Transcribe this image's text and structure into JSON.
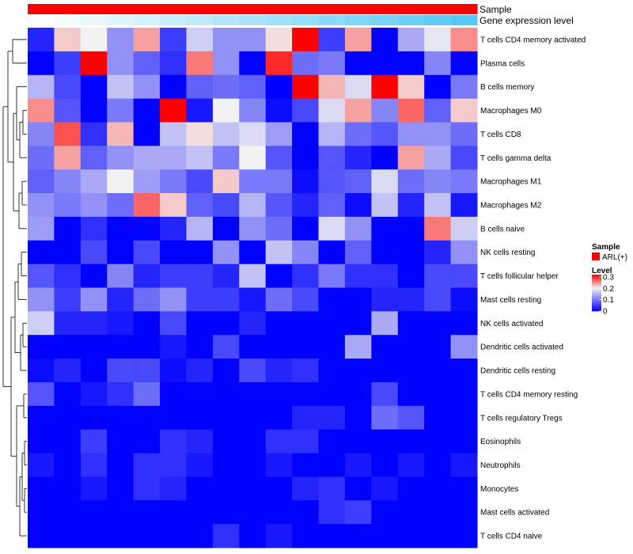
{
  "chart_data": {
    "type": "heatmap",
    "title": "",
    "annotations": [
      {
        "name": "Sample",
        "kind": "solid",
        "color": "#ff0000"
      },
      {
        "name": "Gene expression level",
        "kind": "gradient",
        "from": "#ffffff",
        "to": "#56c8f5"
      }
    ],
    "rows": [
      "T cells CD4 memory activated",
      "Plasma cells",
      "B cells memory",
      "Macrophages M0",
      "T cells CD8",
      "T cells gamma delta",
      "Macrophages M1",
      "Macrophages M2",
      "B cells naive",
      "NK cells resting",
      "T cells follicular helper",
      "Mast cells resting",
      "NK cells activated",
      "Dendritic cells activated",
      "Dendritic cells resting",
      "T cells CD4 memory resting",
      "T cells regulatory  Tregs",
      "Eosinophils",
      "Neutrophils",
      "Monocytes",
      "Mast cells activated",
      "T cells CD4 naive"
    ],
    "n_cols": 17,
    "values": [
      [
        0.03,
        0.22,
        0.2,
        0.12,
        0.24,
        0.05,
        0.17,
        0.12,
        0.12,
        0.21,
        0.32,
        0.05,
        0.24,
        0.0,
        0.14,
        0.19,
        0.25
      ],
      [
        0.0,
        0.05,
        0.32,
        0.12,
        0.08,
        0.04,
        0.26,
        0.12,
        0.0,
        0.3,
        0.09,
        0.1,
        0.0,
        0.0,
        0.0,
        0.11,
        0.0
      ],
      [
        0.15,
        0.06,
        0.0,
        0.16,
        0.12,
        0.0,
        0.08,
        0.09,
        0.08,
        0.0,
        0.32,
        0.23,
        0.18,
        0.32,
        0.22,
        0.0,
        0.1
      ],
      [
        0.25,
        0.07,
        0.0,
        0.1,
        0.0,
        0.32,
        0.02,
        0.2,
        0.11,
        0.01,
        0.06,
        0.18,
        0.24,
        0.11,
        0.27,
        0.08,
        0.22
      ],
      [
        0.11,
        0.28,
        0.04,
        0.23,
        0.0,
        0.16,
        0.21,
        0.16,
        0.18,
        0.13,
        0.0,
        0.15,
        0.09,
        0.07,
        0.12,
        0.12,
        0.09
      ],
      [
        0.09,
        0.24,
        0.08,
        0.12,
        0.14,
        0.14,
        0.16,
        0.1,
        0.2,
        0.07,
        0.0,
        0.07,
        0.03,
        0.0,
        0.24,
        0.14,
        0.06
      ],
      [
        0.08,
        0.11,
        0.14,
        0.2,
        0.13,
        0.1,
        0.06,
        0.22,
        0.1,
        0.1,
        0.01,
        0.07,
        0.08,
        0.18,
        0.09,
        0.11,
        0.1
      ],
      [
        0.12,
        0.1,
        0.12,
        0.09,
        0.27,
        0.22,
        0.08,
        0.06,
        0.15,
        0.07,
        0.03,
        0.08,
        0.01,
        0.16,
        0.03,
        0.16,
        0.02
      ],
      [
        0.13,
        0.0,
        0.04,
        0.0,
        0.0,
        0.03,
        0.15,
        0.0,
        0.12,
        0.09,
        0.0,
        0.18,
        0.12,
        0.0,
        0.0,
        0.26,
        0.17
      ],
      [
        0.0,
        0.0,
        0.06,
        0.0,
        0.06,
        0.0,
        0.0,
        0.12,
        0.0,
        0.16,
        0.11,
        0.0,
        0.08,
        0.0,
        0.0,
        0.03,
        0.12
      ],
      [
        0.07,
        0.04,
        0.0,
        0.11,
        0.03,
        0.05,
        0.05,
        0.03,
        0.16,
        0.0,
        0.04,
        0.1,
        0.04,
        0.04,
        0.0,
        0.06,
        0.06
      ],
      [
        0.12,
        0.05,
        0.12,
        0.03,
        0.09,
        0.12,
        0.05,
        0.05,
        0.02,
        0.09,
        0.06,
        0.0,
        0.0,
        0.03,
        0.03,
        0.06,
        0.01
      ],
      [
        0.17,
        0.03,
        0.03,
        0.02,
        0.0,
        0.06,
        0.0,
        0.0,
        0.03,
        0.0,
        0.0,
        0.0,
        0.0,
        0.14,
        0.0,
        0.0,
        0.0
      ],
      [
        0.0,
        0.0,
        0.0,
        0.0,
        0.0,
        0.02,
        0.0,
        0.06,
        0.0,
        0.0,
        0.0,
        0.0,
        0.14,
        0.0,
        0.0,
        0.0,
        0.12
      ],
      [
        0.01,
        0.03,
        0.0,
        0.06,
        0.06,
        0.01,
        0.03,
        0.0,
        0.06,
        0.03,
        0.04,
        0.0,
        0.0,
        0.0,
        0.0,
        0.0,
        0.0
      ],
      [
        0.07,
        0.0,
        0.02,
        0.04,
        0.09,
        0.0,
        0.0,
        0.0,
        0.0,
        0.0,
        0.0,
        0.0,
        0.0,
        0.06,
        0.0,
        0.0,
        0.0
      ],
      [
        0.0,
        0.0,
        0.0,
        0.0,
        0.0,
        0.0,
        0.0,
        0.0,
        0.0,
        0.0,
        0.03,
        0.03,
        0.0,
        0.09,
        0.07,
        0.0,
        0.0
      ],
      [
        0.0,
        0.0,
        0.05,
        0.0,
        0.0,
        0.04,
        0.03,
        0.0,
        0.0,
        0.04,
        0.04,
        0.0,
        0.0,
        0.0,
        0.0,
        0.0,
        0.0
      ],
      [
        0.02,
        0.0,
        0.04,
        0.0,
        0.04,
        0.04,
        0.02,
        0.0,
        0.0,
        0.02,
        0.0,
        0.0,
        0.02,
        0.0,
        0.02,
        0.0,
        0.02
      ],
      [
        0.0,
        0.0,
        0.02,
        0.0,
        0.04,
        0.03,
        0.0,
        0.0,
        0.0,
        0.0,
        0.03,
        0.04,
        0.0,
        0.02,
        0.0,
        0.0,
        0.0
      ],
      [
        0.0,
        0.0,
        0.0,
        0.0,
        0.0,
        0.0,
        0.0,
        0.0,
        0.0,
        0.0,
        0.0,
        0.04,
        0.05,
        0.0,
        0.0,
        0.0,
        0.0
      ],
      [
        0.0,
        0.0,
        0.0,
        0.0,
        0.0,
        0.0,
        0.0,
        0.04,
        0.0,
        0.02,
        0.0,
        0.0,
        0.0,
        0.0,
        0.0,
        0.0,
        0.0
      ]
    ],
    "color_scale": {
      "min": 0,
      "mid": 0.2,
      "max": 0.32,
      "low": "#0000ff",
      "midColor": "#f2f2f2",
      "high": "#ff0000"
    },
    "legend": {
      "sample_title": "Sample",
      "sample_entry": "ARL(+)",
      "level_title": "Level",
      "level_ticks": [
        "0.3",
        "0.2",
        "0.1",
        "0"
      ],
      "level_tick_values": [
        0.3,
        0.2,
        0.1,
        0
      ]
    },
    "dendrogram": "row clustering (left side)",
    "legend_position": "right"
  }
}
